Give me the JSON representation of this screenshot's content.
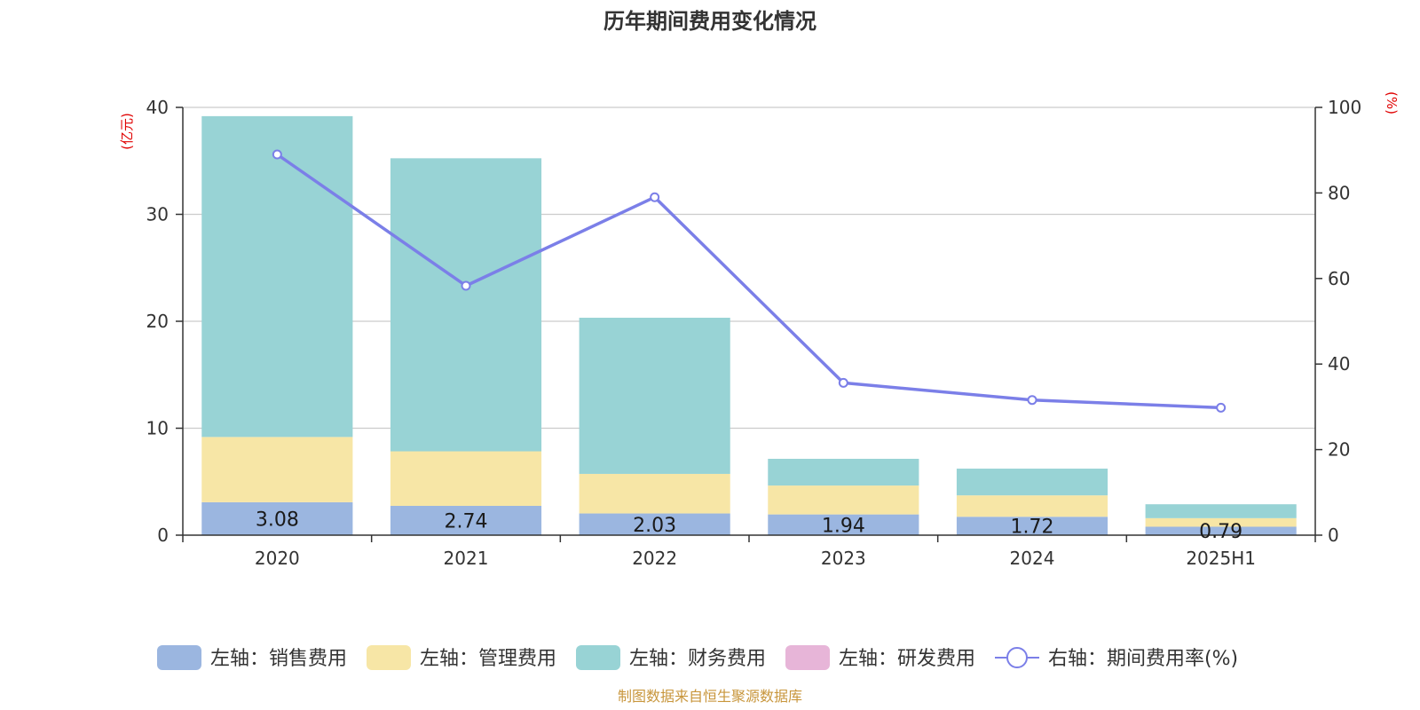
{
  "chart_data": {
    "type": "bar",
    "title": "历年期间费用变化情况",
    "categories": [
      "2020",
      "2021",
      "2022",
      "2023",
      "2024",
      "2025H1"
    ],
    "left_axis": {
      "unit": "(亿元)",
      "ylim": [
        0,
        40
      ],
      "ticks": [
        "0",
        "10",
        "20",
        "30",
        "40"
      ]
    },
    "right_axis": {
      "unit": "(%)",
      "ylim": [
        0,
        100
      ],
      "ticks": [
        "0",
        "20",
        "40",
        "60",
        "80",
        "100"
      ]
    },
    "series": [
      {
        "name": "左轴：销售费用",
        "type": "bar",
        "stack": "left",
        "color": "#9bb6e0",
        "values": [
          3.08,
          2.74,
          2.03,
          1.94,
          1.72,
          0.79
        ],
        "labels": [
          "3.08",
          "2.74",
          "2.03",
          "1.94",
          "1.72",
          "0.79"
        ]
      },
      {
        "name": "左轴：管理费用",
        "type": "bar",
        "stack": "left",
        "color": "#f7e6a6",
        "values": [
          6.1,
          5.1,
          3.7,
          2.7,
          2.0,
          0.8
        ]
      },
      {
        "name": "左轴：财务费用",
        "type": "bar",
        "stack": "left",
        "color": "#98d3d5",
        "values": [
          30.0,
          27.4,
          14.6,
          2.5,
          2.5,
          1.3
        ]
      },
      {
        "name": "左轴：研发费用",
        "type": "bar",
        "stack": "left",
        "color": "#e7b5d8",
        "values": [
          0,
          0,
          0,
          0,
          0,
          0
        ]
      },
      {
        "name": "右轴：期间费用率(%)",
        "type": "line",
        "axis": "right",
        "color": "#7b7fe8",
        "values": [
          89.0,
          58.3,
          79.0,
          35.6,
          31.6,
          29.8
        ]
      }
    ],
    "grid": true,
    "legend_position": "bottom",
    "source": "制图数据来自恒生聚源数据库"
  }
}
